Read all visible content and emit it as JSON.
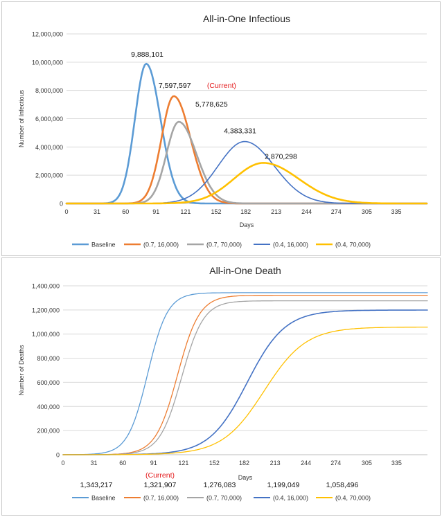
{
  "chart_data": [
    {
      "type": "line",
      "title": "All-in-One Infectious",
      "xlabel": "Days",
      "ylabel": "Number of Infectious",
      "xlim": [
        0,
        366
      ],
      "ylim": [
        0,
        12000000
      ],
      "x_ticks": [
        "0",
        "31",
        "60",
        "91",
        "121",
        "152",
        "182",
        "213",
        "244",
        "274",
        "305",
        "335"
      ],
      "x_tick_values": [
        0,
        31,
        60,
        91,
        121,
        152,
        182,
        213,
        244,
        274,
        305,
        335
      ],
      "y_ticks": [
        "0",
        "2,000,000",
        "4,000,000",
        "6,000,000",
        "8,000,000",
        "10,000,000",
        "12,000,000"
      ],
      "y_tick_values": [
        0,
        2000000,
        4000000,
        6000000,
        8000000,
        10000000,
        12000000
      ],
      "grid": "horizontal",
      "legend_position": "bottom",
      "series": [
        {
          "name": "Baseline",
          "color": "#5B9BD5",
          "width": 2.6,
          "peak_day": 81,
          "peak_value": 9888101,
          "spread_left": 11.5,
          "spread_right": 14.5,
          "peak_label": "9,888,101"
        },
        {
          "name": "(0.7, 16,000)",
          "color": "#ED7D31",
          "width": 2.6,
          "peak_day": 109,
          "peak_value": 7597597,
          "spread_left": 12.5,
          "spread_right": 17,
          "peak_label": "7,597,597",
          "peak_note": "(Current)"
        },
        {
          "name": "(0.7, 70,000)",
          "color": "#A5A5A5",
          "width": 2.6,
          "peak_day": 114,
          "peak_value": 5778625,
          "spread_left": 12.5,
          "spread_right": 18,
          "peak_label": "5,778,625"
        },
        {
          "name": "(0.4, 16,000)",
          "color": "#4472C4",
          "width": 1.6,
          "peak_day": 181,
          "peak_value": 4383331,
          "spread_left": 27,
          "spread_right": 30,
          "peak_label": "4,383,331"
        },
        {
          "name": "(0.4, 70,000)",
          "color": "#FFC000",
          "width": 2.6,
          "peak_day": 200,
          "peak_value": 2870298,
          "spread_left": 30,
          "spread_right": 36,
          "peak_label": "2,870,298"
        }
      ]
    },
    {
      "type": "line",
      "title": "All-in-One Death",
      "xlabel": "Days",
      "ylabel": "Number of Deaths",
      "xlim": [
        0,
        366
      ],
      "ylim": [
        0,
        1400000
      ],
      "x_ticks": [
        "0",
        "31",
        "60",
        "91",
        "121",
        "152",
        "182",
        "213",
        "244",
        "274",
        "305",
        "335"
      ],
      "x_tick_values": [
        0,
        31,
        60,
        91,
        121,
        152,
        182,
        213,
        244,
        274,
        305,
        335
      ],
      "y_ticks": [
        "0",
        "200,000",
        "400,000",
        "600,000",
        "800,000",
        "1,000,000",
        "1,200,000",
        "1,400,000"
      ],
      "y_tick_values": [
        0,
        200000,
        400000,
        600000,
        800000,
        1000000,
        1200000,
        1400000
      ],
      "grid": "horizontal",
      "legend_position": "bottom",
      "series": [
        {
          "name": "Baseline",
          "color": "#5B9BD5",
          "width": 1.3,
          "mid_day": 85,
          "final_value": 1343217,
          "scale": 10,
          "final_label": "1,343,217"
        },
        {
          "name": "(0.7, 16,000)",
          "color": "#ED7D31",
          "width": 1.3,
          "mid_day": 115,
          "final_value": 1321907,
          "scale": 11,
          "final_label": "1,321,907",
          "final_note": "(Current)"
        },
        {
          "name": "(0.7, 70,000)",
          "color": "#A5A5A5",
          "width": 1.3,
          "mid_day": 119,
          "final_value": 1276083,
          "scale": 11,
          "final_label": "1,276,083"
        },
        {
          "name": "(0.4, 16,000)",
          "color": "#4472C4",
          "width": 1.6,
          "mid_day": 185,
          "final_value": 1199049,
          "scale": 19,
          "final_label": "1,199,049"
        },
        {
          "name": "(0.4, 70,000)",
          "color": "#FFC000",
          "width": 1.3,
          "mid_day": 202,
          "final_value": 1058496,
          "scale": 21,
          "final_label": "1,058,496"
        }
      ]
    }
  ]
}
